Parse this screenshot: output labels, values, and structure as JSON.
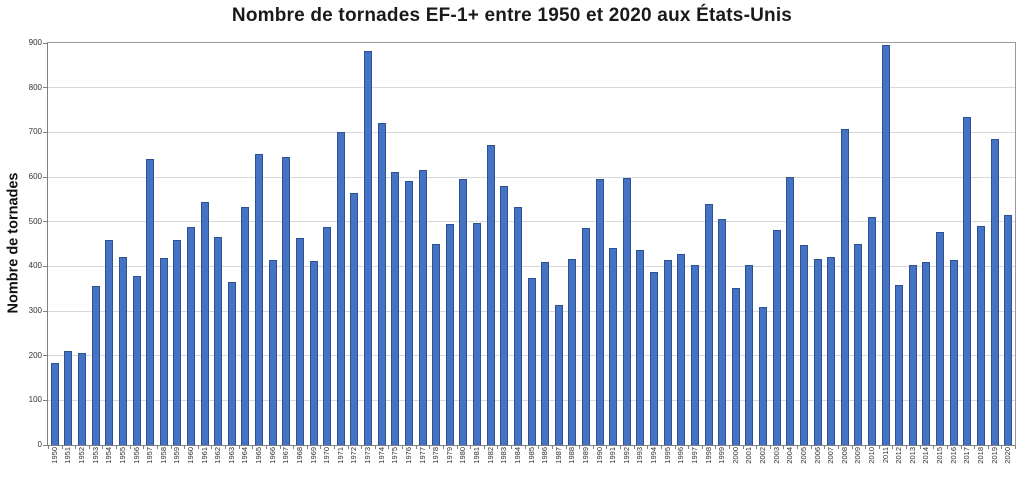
{
  "title": "Nombre de tornades EF-1+ entre 1950 et 2020 aux États-Unis",
  "chart_data": {
    "type": "bar",
    "title": "Nombre de tornades EF-1+ entre 1950 et 2020 aux États-Unis",
    "xlabel": "",
    "ylabel": "Nombre de tornades",
    "ylim": [
      0,
      900
    ],
    "ytick_interval": 100,
    "grid": true,
    "legend": "none",
    "bar_color": "#4472C4",
    "bar_border_color": "#2F528F",
    "gridline_color": "#d9d9d9",
    "axis_color": "#808080",
    "categories": [
      "1950",
      "1951",
      "1952",
      "1953",
      "1954",
      "1955",
      "1956",
      "1957",
      "1958",
      "1959",
      "1960",
      "1961",
      "1962",
      "1963",
      "1964",
      "1965",
      "1966",
      "1967",
      "1968",
      "1969",
      "1970",
      "1971",
      "1972",
      "1973",
      "1974",
      "1975",
      "1976",
      "1977",
      "1978",
      "1979",
      "1980",
      "1981",
      "1982",
      "1983",
      "1984",
      "1985",
      "1986",
      "1987",
      "1988",
      "1989",
      "1990",
      "1991",
      "1992",
      "1993",
      "1994",
      "1995",
      "1996",
      "1997",
      "1998",
      "1999",
      "2000",
      "2001",
      "2002",
      "2003",
      "2004",
      "2005",
      "2006",
      "2007",
      "2008",
      "2009",
      "2010",
      "2011",
      "2012",
      "2013",
      "2014",
      "2015",
      "2016",
      "2017",
      "2018",
      "2019",
      "2020"
    ],
    "values": [
      183,
      211,
      206,
      355,
      460,
      420,
      378,
      641,
      418,
      458,
      488,
      543,
      466,
      364,
      533,
      651,
      415,
      644,
      464,
      411,
      488,
      701,
      565,
      883,
      722,
      611,
      591,
      615,
      449,
      494,
      596,
      497,
      672,
      579,
      532,
      374,
      410,
      313,
      417,
      486,
      595,
      441,
      597,
      437,
      387,
      414,
      428,
      403,
      539,
      507,
      351,
      403,
      310,
      481,
      599,
      447,
      416,
      420,
      707,
      450,
      510,
      896,
      359,
      403,
      409,
      478,
      414,
      735,
      490,
      684,
      516
    ]
  }
}
